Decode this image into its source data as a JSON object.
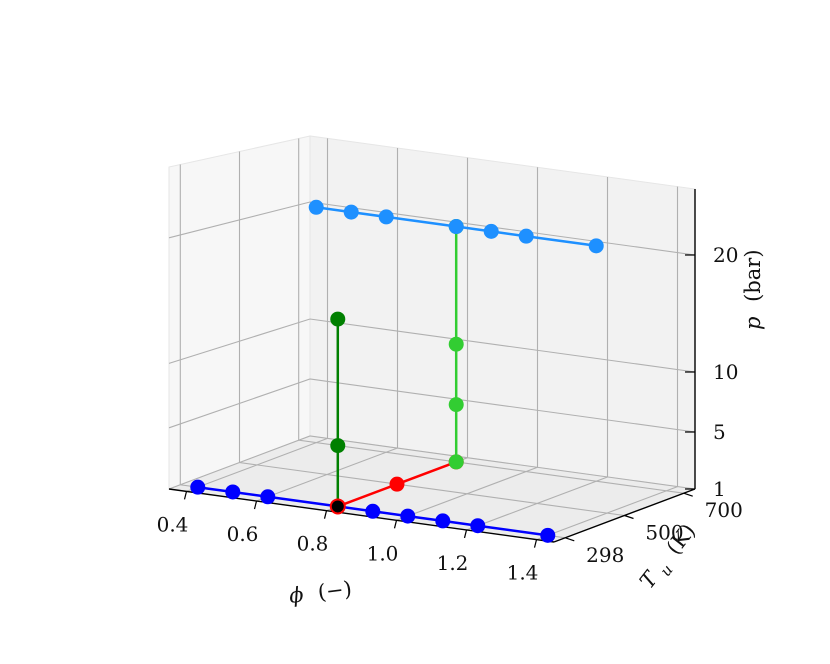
{
  "chart_data": {
    "type": "scatter3d",
    "title": "",
    "axes": {
      "x": {
        "label": "ϕ",
        "unit": "(−)",
        "ticks": [
          0.4,
          0.6,
          0.8,
          1.0,
          1.2,
          1.4
        ],
        "tick_labels": [
          "0.4",
          "0.6",
          "0.8",
          "1.0",
          "1.2",
          "1.4"
        ]
      },
      "y": {
        "label": "T",
        "subscript": "u",
        "unit": "(K)",
        "ticks": [
          298,
          500,
          700
        ],
        "tick_labels": [
          "298",
          "500",
          "700"
        ]
      },
      "z": {
        "label": "p",
        "unit": "(bar)",
        "ticks": [
          1,
          5,
          10,
          20
        ],
        "tick_labels": [
          "1",
          "5",
          "10",
          "20"
        ]
      }
    },
    "grid": true,
    "series": [
      {
        "color": "#0000ff",
        "points": [
          [
            0.4,
            298,
            1
          ],
          [
            0.5,
            298,
            1
          ],
          [
            0.6,
            298,
            1
          ],
          [
            0.8,
            298,
            1
          ],
          [
            0.9,
            298,
            1
          ],
          [
            1.0,
            298,
            1
          ],
          [
            1.1,
            298,
            1
          ],
          [
            1.2,
            298,
            1
          ],
          [
            1.4,
            298,
            1
          ]
        ]
      },
      {
        "color": "#ff0000",
        "points": [
          [
            0.8,
            298,
            1
          ],
          [
            0.8,
            500,
            1
          ],
          [
            0.8,
            700,
            1
          ]
        ]
      },
      {
        "color": "#008000",
        "points": [
          [
            0.8,
            298,
            1
          ],
          [
            0.8,
            298,
            5
          ],
          [
            0.8,
            298,
            15
          ]
        ]
      },
      {
        "color": "#32cd32",
        "points": [
          [
            0.8,
            700,
            1
          ],
          [
            0.8,
            700,
            5
          ],
          [
            0.8,
            700,
            10
          ],
          [
            0.8,
            700,
            20
          ]
        ]
      },
      {
        "color": "#1e90ff",
        "points": [
          [
            0.4,
            700,
            20
          ],
          [
            0.5,
            700,
            20
          ],
          [
            0.6,
            700,
            20
          ],
          [
            0.8,
            700,
            20
          ],
          [
            0.9,
            700,
            20
          ],
          [
            1.0,
            700,
            20
          ],
          [
            1.2,
            700,
            20
          ]
        ]
      }
    ],
    "highlight_point": {
      "point": [
        0.8,
        298,
        1
      ],
      "color": "#000000",
      "edge_color": "#ff0000"
    }
  }
}
